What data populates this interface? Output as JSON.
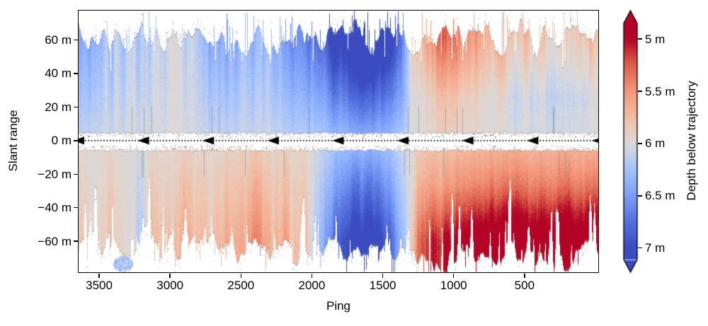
{
  "meta": {
    "background": "#ffffff",
    "text_color": "#000000",
    "frame_color": "#000000"
  },
  "chart_data": {
    "type": "heatmap",
    "title": "",
    "xlabel": "Ping",
    "ylabel": "Slant range",
    "x_axis": {
      "min": -20,
      "max": 3645,
      "reversed": true,
      "ticks": [
        {
          "value": 3500,
          "label": "3500"
        },
        {
          "value": 3000,
          "label": "3000"
        },
        {
          "value": 2500,
          "label": "2500"
        },
        {
          "value": 2000,
          "label": "2000"
        },
        {
          "value": 1500,
          "label": "1500"
        },
        {
          "value": 1000,
          "label": "1000"
        },
        {
          "value": 500,
          "label": "500"
        }
      ]
    },
    "y_axis": {
      "min": -78.5,
      "max": 77.5,
      "ticks": [
        {
          "value": 60,
          "label": "60 m"
        },
        {
          "value": 40,
          "label": "40 m"
        },
        {
          "value": 20,
          "label": "20 m"
        },
        {
          "value": 0,
          "label": "0 m"
        },
        {
          "value": -20,
          "label": "−20 m"
        },
        {
          "value": -40,
          "label": "−40 m"
        },
        {
          "value": -60,
          "label": "−60 m"
        }
      ]
    },
    "colorbar": {
      "label": "Depth below trajectory",
      "vmin": 5,
      "vmax": 7,
      "reversed_scale": true,
      "extend": "both",
      "ticks": [
        {
          "value": 5,
          "label": "5 m"
        },
        {
          "value": 5.5,
          "label": "5.5 m"
        },
        {
          "value": 6,
          "label": "6 m"
        },
        {
          "value": 6.5,
          "label": "6.5 m"
        },
        {
          "value": 7,
          "label": "7 m"
        }
      ],
      "colormap": "coolwarm (red = shallow 5 m, blue = deep 7 m)",
      "colormap_anchors": [
        {
          "t": 0.0,
          "color": "#3b4cc0"
        },
        {
          "t": 0.13,
          "color": "#5572df"
        },
        {
          "t": 0.25,
          "color": "#7b9ff9"
        },
        {
          "t": 0.38,
          "color": "#a7c4fe"
        },
        {
          "t": 0.5,
          "color": "#dddcdb"
        },
        {
          "t": 0.62,
          "color": "#f2c0a7"
        },
        {
          "t": 0.75,
          "color": "#f3977b"
        },
        {
          "t": 0.88,
          "color": "#dd5f4b"
        },
        {
          "t": 1.0,
          "color": "#b40426"
        }
      ]
    },
    "trajectory": {
      "slant_range_m": 0,
      "line_style": "dotted",
      "arrow_direction": "left",
      "arrow_count": 9,
      "color": "#000000"
    },
    "swath_profile": {
      "pings": [
        3650,
        3500,
        3350,
        3180,
        3100,
        2950,
        2800,
        2650,
        2500,
        2350,
        2200,
        2050,
        1950,
        1850,
        1700,
        1550,
        1430,
        1340,
        1250,
        1150,
        1000,
        850,
        700,
        550,
        400,
        250,
        100,
        -20
      ],
      "upper_depth_m": [
        6.25,
        6.2,
        6.15,
        6.12,
        6.1,
        6.0,
        6.2,
        6.3,
        6.25,
        6.2,
        6.3,
        6.45,
        6.55,
        6.75,
        6.95,
        6.95,
        6.7,
        6.3,
        5.95,
        5.8,
        5.75,
        5.85,
        5.95,
        6.05,
        6.08,
        6.1,
        6.08,
        6.0
      ],
      "lower_depth_m": [
        5.9,
        5.92,
        5.88,
        6.05,
        5.82,
        5.8,
        5.85,
        5.78,
        5.7,
        5.68,
        5.78,
        5.85,
        6.1,
        6.5,
        6.8,
        6.8,
        6.55,
        6.1,
        5.7,
        5.55,
        5.45,
        5.35,
        5.3,
        5.28,
        5.3,
        5.25,
        5.25,
        5.3
      ],
      "upper_edge_bias_m": [
        0,
        0,
        0,
        0,
        0,
        0,
        0,
        0,
        0,
        0,
        0,
        0,
        0,
        0,
        0,
        0,
        0,
        -0.1,
        -0.25,
        -0.3,
        -0.3,
        -0.25,
        -0.25,
        -0.3,
        -0.3,
        -0.3,
        -0.3,
        -0.3
      ],
      "lower_edge_bias_m": [
        0,
        0,
        0,
        0,
        0,
        0,
        0,
        0,
        0,
        0,
        0,
        0,
        0,
        0,
        0,
        0,
        0,
        0,
        -0.15,
        -0.2,
        -0.25,
        -0.25,
        -0.25,
        -0.25,
        -0.25,
        -0.25,
        -0.25,
        -0.25
      ]
    },
    "gap": {
      "upper_inner_m": 3.3,
      "lower_inner_m": 4.6
    },
    "extent": {
      "upper_typical_m": [
        46,
        77
      ],
      "lower_typical_m": [
        48,
        78
      ]
    },
    "detached_patch": {
      "ping_range": [
        3270,
        3400
      ],
      "slant_range_m": [
        -78,
        -69
      ],
      "depth_m": 6.35
    }
  }
}
